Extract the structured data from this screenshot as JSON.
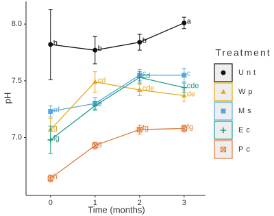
{
  "chart_data": {
    "type": "line",
    "x_label": "Time (months)",
    "y_label": "pH",
    "x": [
      0,
      1,
      2,
      3
    ],
    "xlim": [
      -0.55,
      3.48
    ],
    "xticks": [
      0,
      1,
      2,
      3
    ],
    "ylim": [
      6.49,
      8.2
    ],
    "yticks": [
      {
        "value": 7,
        "label": "7.0"
      },
      {
        "value": 7.5,
        "label": "7.5"
      },
      {
        "value": 8,
        "label": "8.0"
      }
    ],
    "legend_title": "Treatment",
    "legend_position": "right",
    "series": [
      {
        "name": "Unt",
        "color": "#111111",
        "marker": "circle",
        "values": [
          7.82,
          7.77,
          7.84,
          8.01
        ],
        "errors": [
          0.31,
          0.12,
          0.07,
          0.05
        ],
        "letters": [
          "b",
          "b",
          "b",
          "a"
        ]
      },
      {
        "name": "Wp",
        "color": "#e6a817",
        "marker": "triangle",
        "values": [
          7.07,
          7.49,
          7.42,
          7.37
        ],
        "errors": [
          0.1,
          0.09,
          0.05,
          0.05
        ],
        "letters": [
          "g",
          "cd",
          "cde",
          "de"
        ]
      },
      {
        "name": "Ms",
        "color": "#56a8de",
        "marker": "square",
        "values": [
          7.23,
          7.3,
          7.55,
          7.55
        ],
        "errors": [
          0.05,
          0.05,
          0.05,
          0.06
        ],
        "letters": [
          "ef",
          "e",
          "c",
          "c"
        ]
      },
      {
        "name": "Ec",
        "color": "#1a9c86",
        "marker": "plus",
        "values": [
          6.98,
          7.28,
          7.53,
          7.44
        ],
        "errors": [
          0.12,
          0.04,
          0.05,
          0.04
        ],
        "letters": [
          "fg",
          "e",
          "cd",
          "cde"
        ]
      },
      {
        "name": "Pc",
        "color": "#e07a3a",
        "marker": "xsquare",
        "values": [
          6.64,
          6.93,
          7.07,
          7.08
        ],
        "errors": [
          0.03,
          0.03,
          0.04,
          0.03
        ],
        "letters": [
          "h",
          "g",
          "fg",
          "fg"
        ]
      }
    ]
  }
}
